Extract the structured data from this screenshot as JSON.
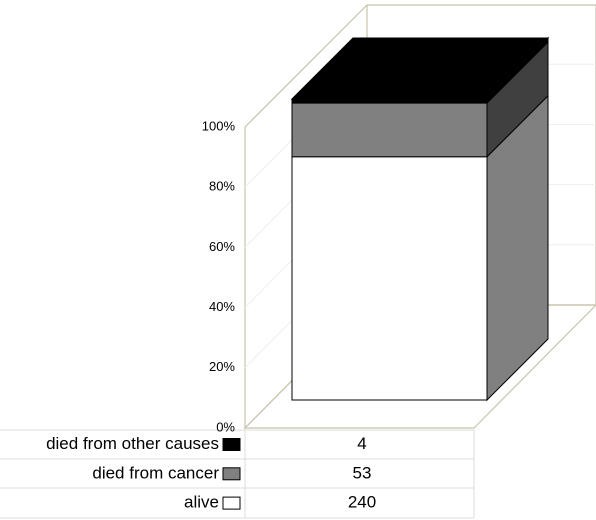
{
  "chart_data": {
    "type": "bar3d",
    "stacked": "percent",
    "categories": [
      null
    ],
    "series": [
      {
        "name": "alive",
        "color": "#ffffff",
        "values": [
          240
        ]
      },
      {
        "name": "died from cancer",
        "color": "#808080",
        "values": [
          53
        ]
      },
      {
        "name": "died from other causes",
        "color": "#000000",
        "values": [
          4
        ]
      }
    ],
    "ylim": [
      0,
      100
    ],
    "yticks": [
      {
        "value": 0,
        "label": "0%"
      },
      {
        "value": 20,
        "label": "20%"
      },
      {
        "value": 40,
        "label": "40%"
      },
      {
        "value": 60,
        "label": "60%"
      },
      {
        "value": 80,
        "label": "80%"
      },
      {
        "value": 100,
        "label": "100%"
      }
    ],
    "grid": true
  }
}
